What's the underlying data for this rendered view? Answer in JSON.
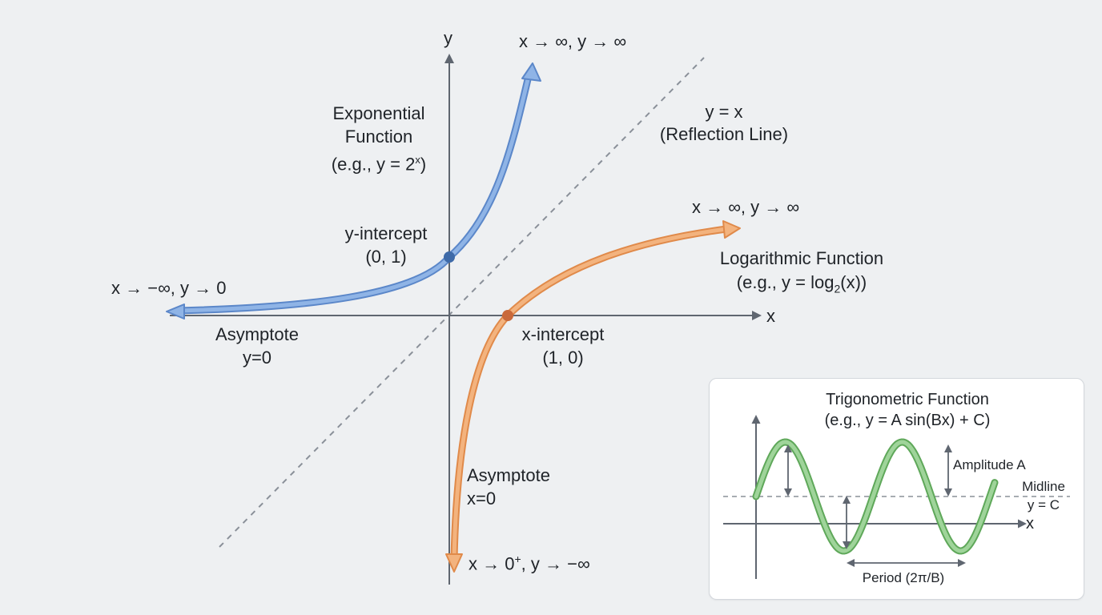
{
  "main_graph": {
    "axis_x_label": "x",
    "axis_y_label": "y",
    "exponential": {
      "title_line1": "Exponential",
      "title_line2": "Function",
      "example_prefix": "(e.g., y = 2",
      "example_exp": "x",
      "example_suffix": ")",
      "color": "#8fb4e6",
      "stroke": "#5b87c9",
      "end_behavior_right": "x → ∞, y → ∞",
      "end_behavior_left": "x → −∞, y → 0",
      "asymptote_line1": "Asymptote",
      "asymptote_line2": "y=0",
      "intercept_line1": "y-intercept",
      "intercept_line2": "(0, 1)"
    },
    "logarithmic": {
      "title": "Logarithmic Function",
      "example_prefix": "(e.g., y = log",
      "example_sub": "2",
      "example_suffix": "(x))",
      "color": "#f3b37e",
      "stroke": "#e08a4a",
      "end_behavior_right": "x → ∞, y → ∞",
      "end_behavior_bottom_prefix": "x → 0",
      "end_behavior_bottom_sup": "+",
      "end_behavior_bottom_suffix": ", y → −∞",
      "asymptote_line1": "Asymptote",
      "asymptote_line2": "x=0",
      "intercept_line1": "x-intercept",
      "intercept_line2": "(1, 0)"
    },
    "reflection": {
      "line1": "y = x",
      "line2": "(Reflection Line)"
    }
  },
  "trig_panel": {
    "title": "Trigonometric Function",
    "example": "(e.g., y = A sin(Bx) + C)",
    "amplitude_label": "Amplitude A",
    "midline_line1": "Midline",
    "midline_line2": "y = C",
    "period_label": "Period (2π/B)",
    "axis_x_label": "x",
    "color": "#9fd49a",
    "stroke": "#5fa85a"
  }
}
